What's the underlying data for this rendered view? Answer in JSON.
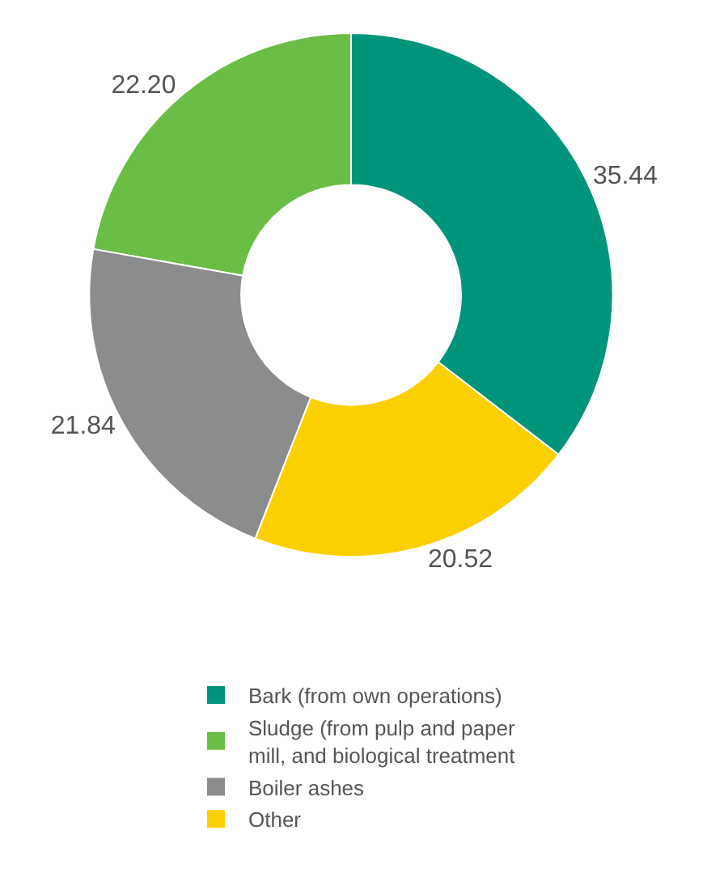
{
  "chart_data": {
    "type": "donut",
    "categories": [
      "Bark (from own operations)",
      "Sludge (from pulp and paper mill, and biological treatment",
      "Boiler ashes",
      "Other"
    ],
    "values": [
      35.44,
      22.2,
      21.84,
      20.52
    ],
    "value_labels": [
      "35.44",
      "22.20",
      "21.84",
      "20.52"
    ],
    "colors": [
      "#00957a",
      "#6abd45",
      "#8a8c8e",
      "#fcd000"
    ],
    "legend": "bottom left"
  }
}
